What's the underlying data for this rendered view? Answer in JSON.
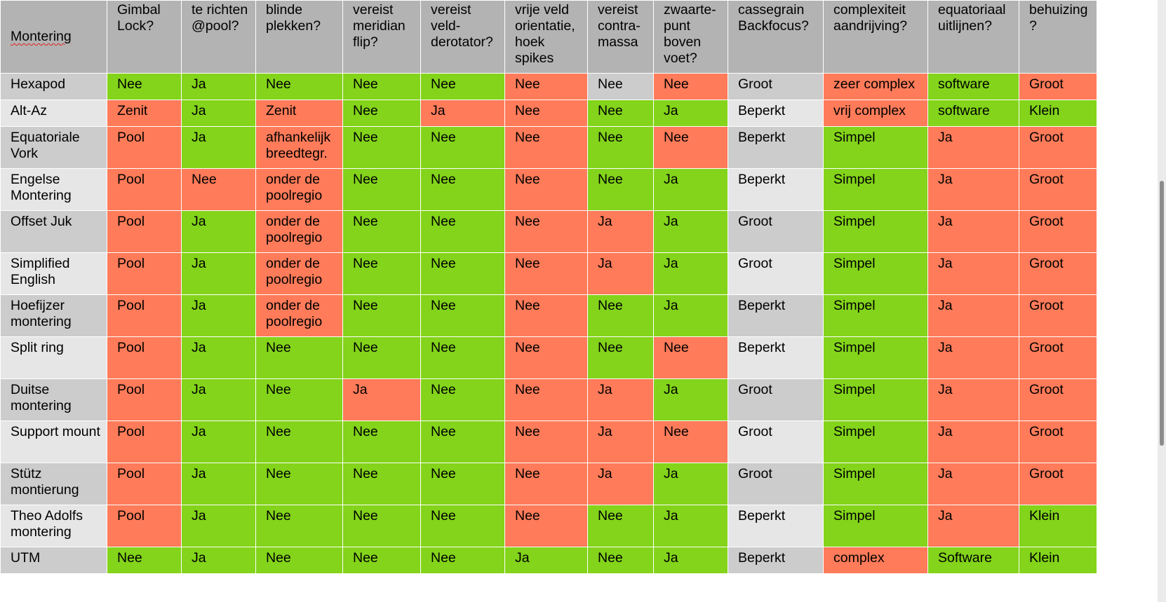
{
  "colors": {
    "good": "#83d41a",
    "bad": "#ff7b59",
    "header": "#b3b3b3",
    "row_odd": "#cccccc",
    "row_even": "#e6e6e6"
  },
  "headers": [
    "Montering",
    "Gimbal Lock?",
    "te richten @pool?",
    "blinde plekken?",
    "vereist meridian flip?",
    "vereist veld-derotator?",
    "vrije veld orientatie, hoek spikes",
    "vereist contra-massa",
    "zwaarte-punt boven voet?",
    "cassegrain Backfocus?",
    "complexiteit aandrijving?",
    "equatoriaal uitlijnen?",
    "behuizing ?"
  ],
  "rows": [
    {
      "cells": [
        {
          "v": "Hexapod",
          "s": "name"
        },
        {
          "v": "Nee",
          "s": "good"
        },
        {
          "v": "Ja",
          "s": "good"
        },
        {
          "v": "Nee",
          "s": "good"
        },
        {
          "v": "Nee",
          "s": "good"
        },
        {
          "v": "Nee",
          "s": "good"
        },
        {
          "v": "Nee",
          "s": "bad"
        },
        {
          "v": "Nee",
          "s": "neutral"
        },
        {
          "v": "Nee",
          "s": "bad"
        },
        {
          "v": "Groot",
          "s": "neutral"
        },
        {
          "v": "zeer complex",
          "s": "bad"
        },
        {
          "v": "software",
          "s": "good"
        },
        {
          "v": "Groot",
          "s": "bad"
        }
      ]
    },
    {
      "cells": [
        {
          "v": "Alt-Az",
          "s": "name"
        },
        {
          "v": "Zenit",
          "s": "bad"
        },
        {
          "v": "Ja",
          "s": "good"
        },
        {
          "v": "Zenit",
          "s": "bad"
        },
        {
          "v": "Nee",
          "s": "good"
        },
        {
          "v": "Ja",
          "s": "bad"
        },
        {
          "v": "Nee",
          "s": "bad"
        },
        {
          "v": "Nee",
          "s": "good"
        },
        {
          "v": "Ja",
          "s": "good"
        },
        {
          "v": "Beperkt",
          "s": "neutral"
        },
        {
          "v": "vrij complex",
          "s": "bad"
        },
        {
          "v": "software",
          "s": "good"
        },
        {
          "v": "Klein",
          "s": "good"
        }
      ]
    },
    {
      "cells": [
        {
          "v": "Equatoriale Vork",
          "s": "name"
        },
        {
          "v": "Pool",
          "s": "bad"
        },
        {
          "v": "Ja",
          "s": "good"
        },
        {
          "v": "afhankelijk breedtegr.",
          "s": "bad"
        },
        {
          "v": "Nee",
          "s": "good"
        },
        {
          "v": "Nee",
          "s": "good"
        },
        {
          "v": "Nee",
          "s": "bad"
        },
        {
          "v": "Nee",
          "s": "good"
        },
        {
          "v": "Nee",
          "s": "bad"
        },
        {
          "v": "Beperkt",
          "s": "neutral"
        },
        {
          "v": "Simpel",
          "s": "good"
        },
        {
          "v": "Ja",
          "s": "bad"
        },
        {
          "v": "Groot",
          "s": "bad"
        }
      ]
    },
    {
      "cells": [
        {
          "v": "Engelse Montering",
          "s": "name"
        },
        {
          "v": "Pool",
          "s": "bad"
        },
        {
          "v": "Nee",
          "s": "bad"
        },
        {
          "v": "onder de poolregio",
          "s": "bad"
        },
        {
          "v": "Nee",
          "s": "good"
        },
        {
          "v": "Nee",
          "s": "good"
        },
        {
          "v": "Nee",
          "s": "bad"
        },
        {
          "v": "Nee",
          "s": "good"
        },
        {
          "v": "Ja",
          "s": "good"
        },
        {
          "v": "Beperkt",
          "s": "neutral"
        },
        {
          "v": "Simpel",
          "s": "good"
        },
        {
          "v": "Ja",
          "s": "bad"
        },
        {
          "v": "Groot",
          "s": "bad"
        }
      ]
    },
    {
      "cells": [
        {
          "v": "Offset Juk",
          "s": "name"
        },
        {
          "v": "Pool",
          "s": "bad"
        },
        {
          "v": "Ja",
          "s": "good"
        },
        {
          "v": "onder de poolregio",
          "s": "bad"
        },
        {
          "v": "Nee",
          "s": "good"
        },
        {
          "v": "Nee",
          "s": "good"
        },
        {
          "v": "Nee",
          "s": "bad"
        },
        {
          "v": "Ja",
          "s": "bad"
        },
        {
          "v": "Ja",
          "s": "good"
        },
        {
          "v": "Groot",
          "s": "neutral"
        },
        {
          "v": "Simpel",
          "s": "good"
        },
        {
          "v": "Ja",
          "s": "bad"
        },
        {
          "v": "Groot",
          "s": "bad"
        }
      ]
    },
    {
      "cells": [
        {
          "v": "Simplified English",
          "s": "name"
        },
        {
          "v": "Pool",
          "s": "bad"
        },
        {
          "v": "Ja",
          "s": "good"
        },
        {
          "v": "onder de poolregio",
          "s": "bad"
        },
        {
          "v": "Nee",
          "s": "good"
        },
        {
          "v": "Nee",
          "s": "good"
        },
        {
          "v": "Nee",
          "s": "bad"
        },
        {
          "v": "Ja",
          "s": "bad"
        },
        {
          "v": "Ja",
          "s": "good"
        },
        {
          "v": "Groot",
          "s": "neutral"
        },
        {
          "v": "Simpel",
          "s": "good"
        },
        {
          "v": "Ja",
          "s": "bad"
        },
        {
          "v": "Groot",
          "s": "bad"
        }
      ]
    },
    {
      "cells": [
        {
          "v": "Hoefijzer montering",
          "s": "name"
        },
        {
          "v": "Pool",
          "s": "bad"
        },
        {
          "v": "Ja",
          "s": "good"
        },
        {
          "v": "onder de poolregio",
          "s": "bad"
        },
        {
          "v": "Nee",
          "s": "good"
        },
        {
          "v": "Nee",
          "s": "good"
        },
        {
          "v": "Nee",
          "s": "bad"
        },
        {
          "v": "Nee",
          "s": "good"
        },
        {
          "v": "Ja",
          "s": "good"
        },
        {
          "v": "Beperkt",
          "s": "neutral"
        },
        {
          "v": "Simpel",
          "s": "good"
        },
        {
          "v": "Ja",
          "s": "bad"
        },
        {
          "v": "Groot",
          "s": "bad"
        }
      ]
    },
    {
      "cells": [
        {
          "v": "Split ring",
          "s": "name"
        },
        {
          "v": "Pool",
          "s": "bad"
        },
        {
          "v": "Ja",
          "s": "good"
        },
        {
          "v": "Nee",
          "s": "good"
        },
        {
          "v": "Nee",
          "s": "good"
        },
        {
          "v": "Nee",
          "s": "good"
        },
        {
          "v": "Nee",
          "s": "bad"
        },
        {
          "v": "Nee",
          "s": "good"
        },
        {
          "v": "Nee",
          "s": "bad"
        },
        {
          "v": "Beperkt",
          "s": "neutral"
        },
        {
          "v": "Simpel",
          "s": "good"
        },
        {
          "v": "Ja",
          "s": "bad"
        },
        {
          "v": "Groot",
          "s": "bad"
        }
      ]
    },
    {
      "cells": [
        {
          "v": "Duitse montering",
          "s": "name"
        },
        {
          "v": "Pool",
          "s": "bad"
        },
        {
          "v": "Ja",
          "s": "good"
        },
        {
          "v": "Nee",
          "s": "good"
        },
        {
          "v": "Ja",
          "s": "bad"
        },
        {
          "v": "Nee",
          "s": "good"
        },
        {
          "v": "Nee",
          "s": "bad"
        },
        {
          "v": "Ja",
          "s": "bad"
        },
        {
          "v": "Ja",
          "s": "good"
        },
        {
          "v": "Groot",
          "s": "neutral"
        },
        {
          "v": "Simpel",
          "s": "good"
        },
        {
          "v": "Ja",
          "s": "bad"
        },
        {
          "v": "Groot",
          "s": "bad"
        }
      ]
    },
    {
      "cells": [
        {
          "v": "Support mount",
          "s": "name"
        },
        {
          "v": "Pool",
          "s": "bad"
        },
        {
          "v": "Ja",
          "s": "good"
        },
        {
          "v": "Nee",
          "s": "good"
        },
        {
          "v": "Nee",
          "s": "good"
        },
        {
          "v": "Nee",
          "s": "good"
        },
        {
          "v": "Nee",
          "s": "bad"
        },
        {
          "v": "Ja",
          "s": "bad"
        },
        {
          "v": "Nee",
          "s": "bad"
        },
        {
          "v": "Groot",
          "s": "neutral"
        },
        {
          "v": "Simpel",
          "s": "good"
        },
        {
          "v": "Ja",
          "s": "bad"
        },
        {
          "v": "Groot",
          "s": "bad"
        }
      ]
    },
    {
      "cells": [
        {
          "v": "Stütz montierung",
          "s": "name"
        },
        {
          "v": "Pool",
          "s": "bad"
        },
        {
          "v": "Ja",
          "s": "good"
        },
        {
          "v": "Nee",
          "s": "good"
        },
        {
          "v": "Nee",
          "s": "good"
        },
        {
          "v": "Nee",
          "s": "good"
        },
        {
          "v": "Nee",
          "s": "bad"
        },
        {
          "v": "Ja",
          "s": "bad"
        },
        {
          "v": "Ja",
          "s": "good"
        },
        {
          "v": "Groot",
          "s": "neutral"
        },
        {
          "v": "Simpel",
          "s": "good"
        },
        {
          "v": "Ja",
          "s": "bad"
        },
        {
          "v": "Groot",
          "s": "bad"
        }
      ]
    },
    {
      "cells": [
        {
          "v": "Theo Adolfs montering",
          "s": "name"
        },
        {
          "v": "Pool",
          "s": "bad"
        },
        {
          "v": "Ja",
          "s": "good"
        },
        {
          "v": "Nee",
          "s": "good"
        },
        {
          "v": "Nee",
          "s": "good"
        },
        {
          "v": "Nee",
          "s": "good"
        },
        {
          "v": "Nee",
          "s": "bad"
        },
        {
          "v": "Nee",
          "s": "good"
        },
        {
          "v": "Ja",
          "s": "good"
        },
        {
          "v": "Beperkt",
          "s": "neutral"
        },
        {
          "v": "Simpel",
          "s": "good"
        },
        {
          "v": "Ja",
          "s": "bad"
        },
        {
          "v": "Klein",
          "s": "good"
        }
      ]
    },
    {
      "cells": [
        {
          "v": "UTM",
          "s": "name"
        },
        {
          "v": "Nee",
          "s": "good"
        },
        {
          "v": "Ja",
          "s": "good"
        },
        {
          "v": "Nee",
          "s": "good"
        },
        {
          "v": "Nee",
          "s": "good"
        },
        {
          "v": "Nee",
          "s": "good"
        },
        {
          "v": "Ja",
          "s": "good"
        },
        {
          "v": "Nee",
          "s": "good"
        },
        {
          "v": "Ja",
          "s": "good"
        },
        {
          "v": "Beperkt",
          "s": "neutral"
        },
        {
          "v": "complex",
          "s": "bad"
        },
        {
          "v": "Software",
          "s": "good"
        },
        {
          "v": "Klein",
          "s": "good"
        }
      ]
    }
  ]
}
